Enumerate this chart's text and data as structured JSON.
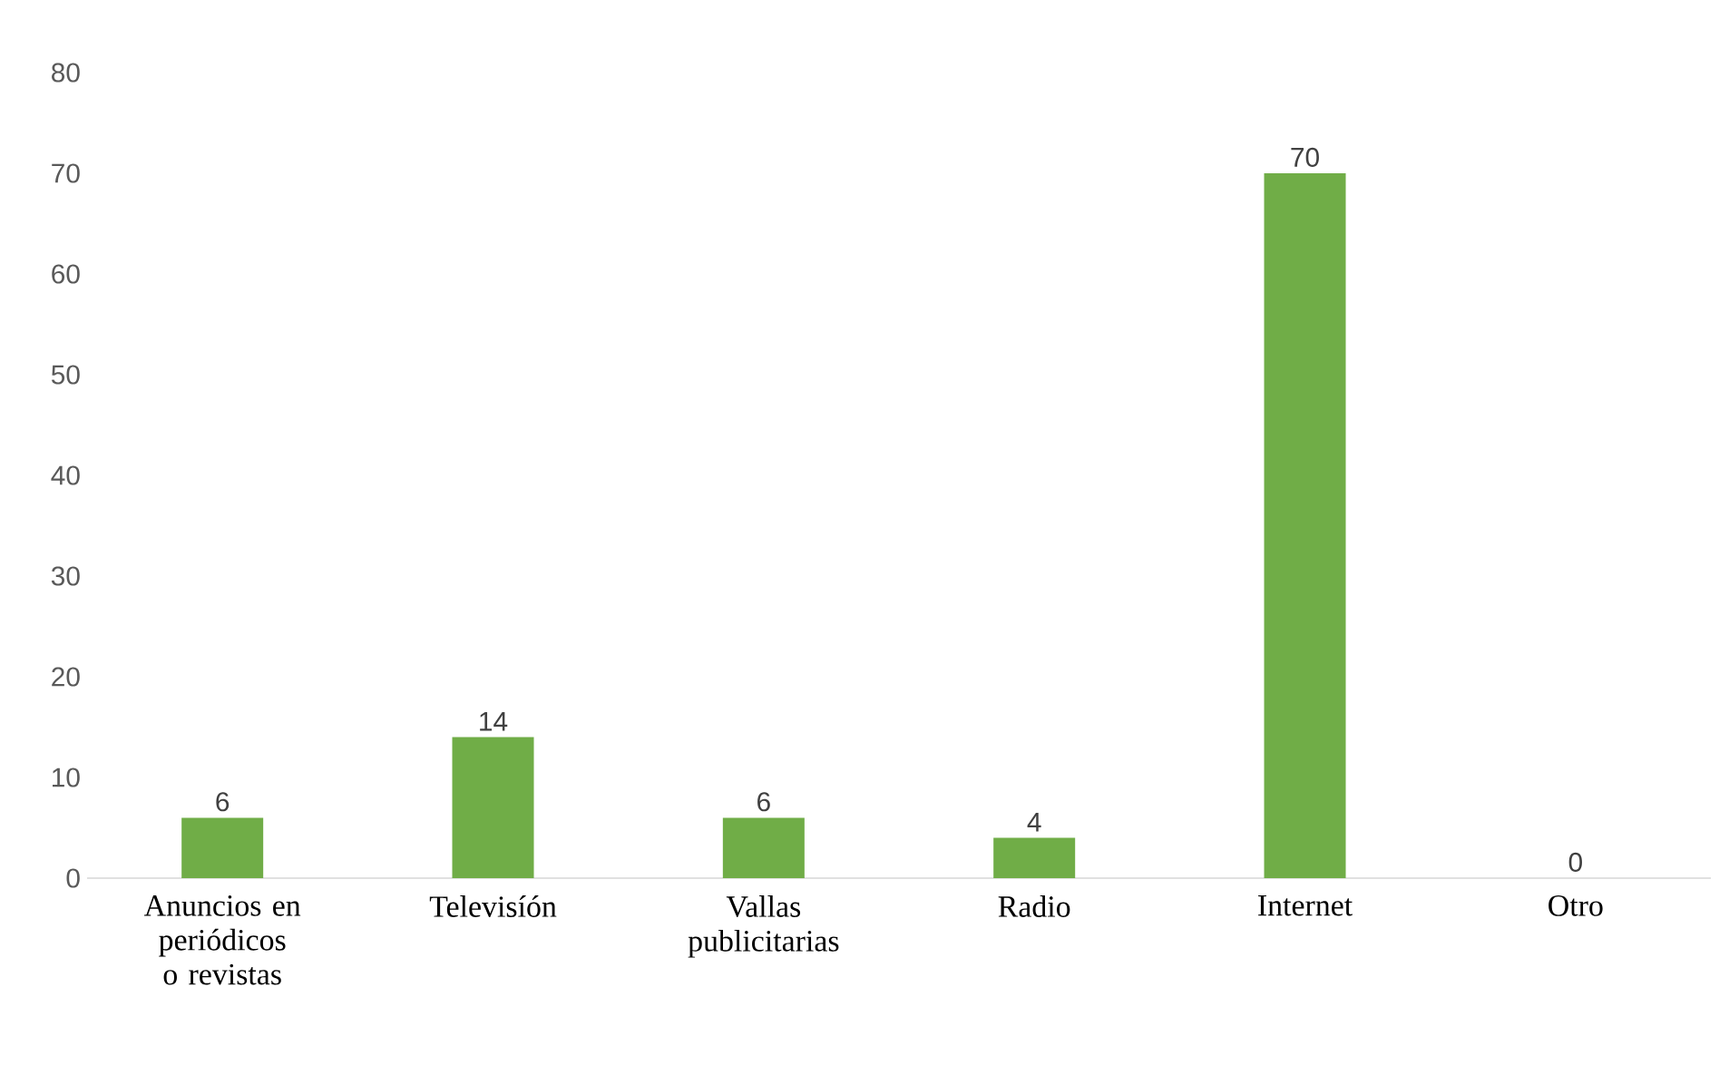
{
  "chart_data": {
    "type": "bar",
    "categories": [
      "Anuncios en periódicos o revistas",
      "Televisíón",
      "Vallas publicitarias",
      "Radio",
      "Internet",
      "Otro"
    ],
    "values": [
      6,
      14,
      6,
      4,
      70,
      0
    ],
    "color": "#70ad47",
    "ylim": [
      0,
      80
    ],
    "yticks": [
      0,
      10,
      20,
      30,
      40,
      50,
      60,
      70,
      80
    ],
    "data_labels": true,
    "grid": false
  }
}
